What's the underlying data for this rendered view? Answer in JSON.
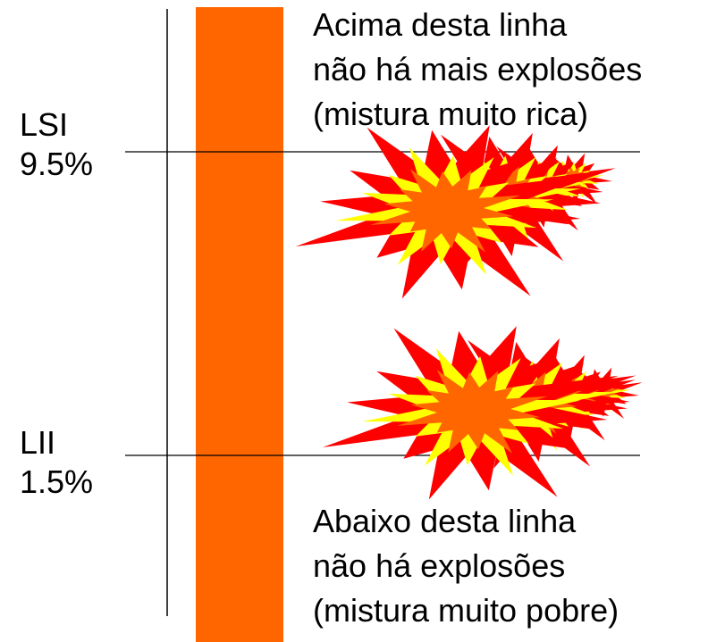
{
  "upper_limit": {
    "name": "LSI",
    "value_label": "9.5%"
  },
  "lower_limit": {
    "name": "LII",
    "value_label": "1.5%"
  },
  "upper_note": [
    "Acima desta linha",
    "não há mais explosões",
    "(mistura muito rica)"
  ],
  "lower_note": [
    "Abaixo desta linha",
    "não há explosões",
    "(mistura muito pobre)"
  ]
}
